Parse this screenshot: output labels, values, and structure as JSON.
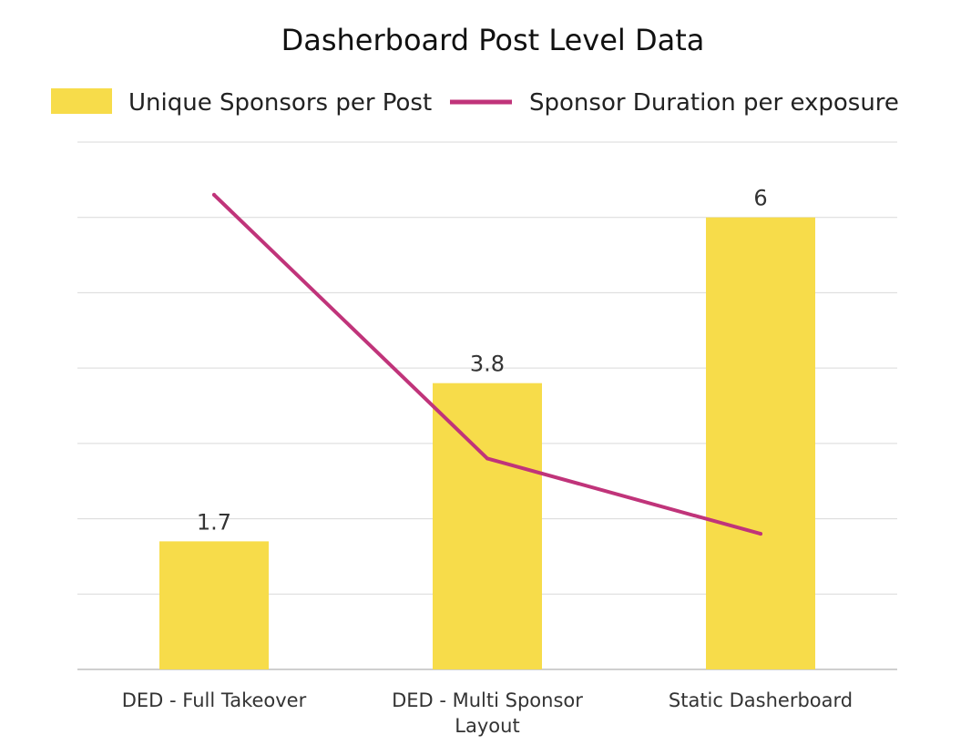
{
  "chart_data": {
    "type": "bar",
    "title": "Dasherboard Post Level Data",
    "legend_position": "top",
    "grid": true,
    "categories": [
      [
        "DED - Full Takeover"
      ],
      [
        "DED - Multi Sponsor",
        "Layout"
      ],
      [
        "Static Dasherboard"
      ]
    ],
    "series": [
      {
        "name": "Unique Sponsors per Post",
        "type": "bar",
        "color": "#F7DC4A",
        "values": [
          1.7,
          3.8,
          6
        ],
        "data_labels": [
          "1.7",
          "3.8",
          "6"
        ]
      },
      {
        "name": "Sponsor Duration per exposure",
        "type": "line",
        "color": "#C0347A",
        "values": [
          6.3,
          2.8,
          1.8
        ]
      }
    ],
    "ylim": [
      0,
      7
    ]
  }
}
